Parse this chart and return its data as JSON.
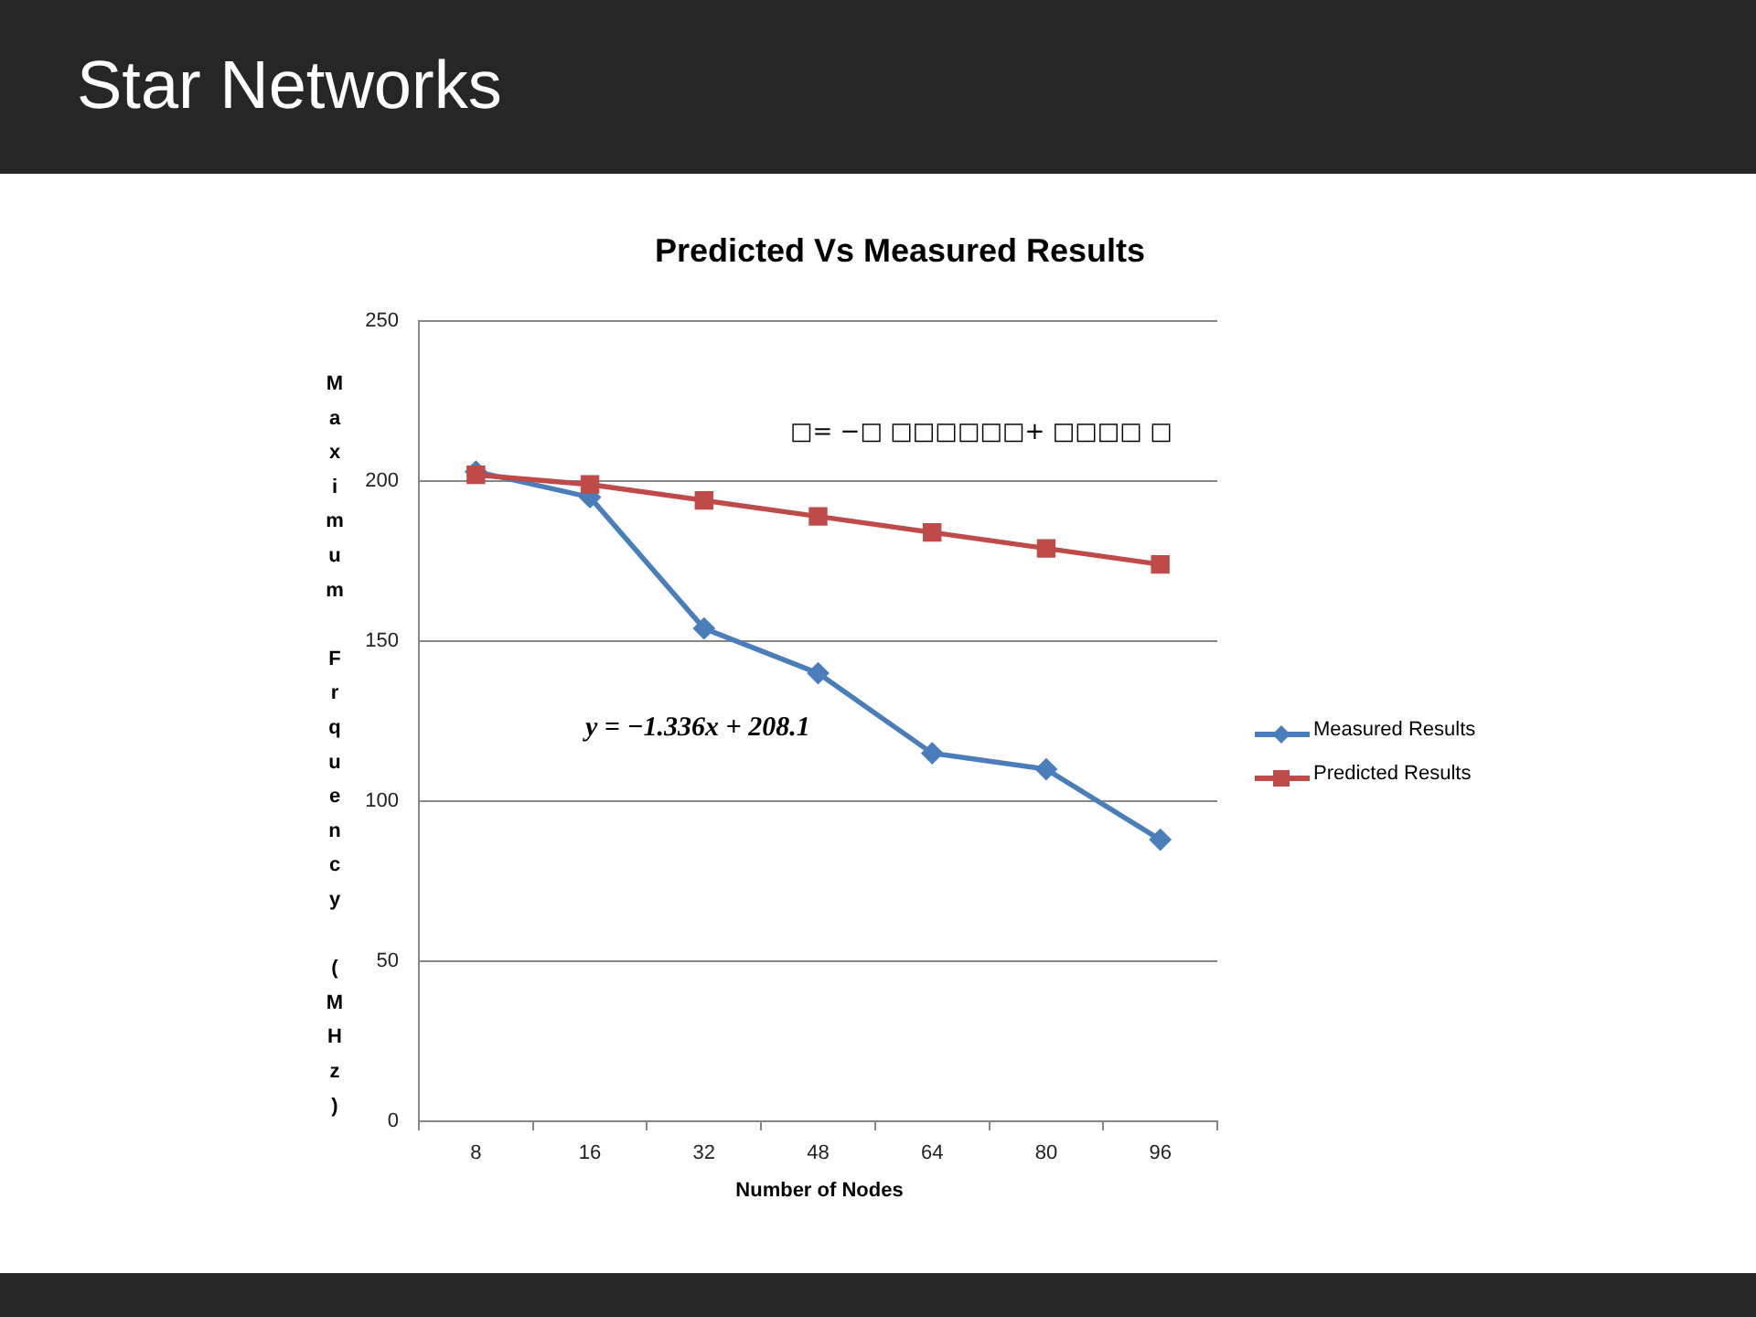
{
  "chart_data": {
    "type": "line",
    "title": "Star Networks",
    "subtitle": "Predicted Vs Measured Results",
    "xlabel": "Number of Nodes",
    "ylabel": "Maximum Frquency (MHz)",
    "categories": [
      "8",
      "16",
      "32",
      "48",
      "64",
      "80",
      "96"
    ],
    "series": [
      {
        "name": "Measured Results",
        "color": "#4a7ebb",
        "marker": "diamond",
        "values": [
          203,
          195,
          154,
          140,
          115,
          110,
          88
        ]
      },
      {
        "name": "Predicted Results",
        "color": "#be4b48",
        "marker": "square",
        "values": [
          202,
          199,
          194,
          189,
          184,
          179,
          174
        ]
      }
    ],
    "ylim": [
      0,
      250
    ],
    "yticks": [
      0,
      50,
      100,
      150,
      200,
      250
    ],
    "grid": "y",
    "legend": "right",
    "line_style": "solid",
    "annotations": [
      "□= −□ □□□□□□+ □□□□ □",
      "y = −1.336x + 208.1"
    ]
  }
}
